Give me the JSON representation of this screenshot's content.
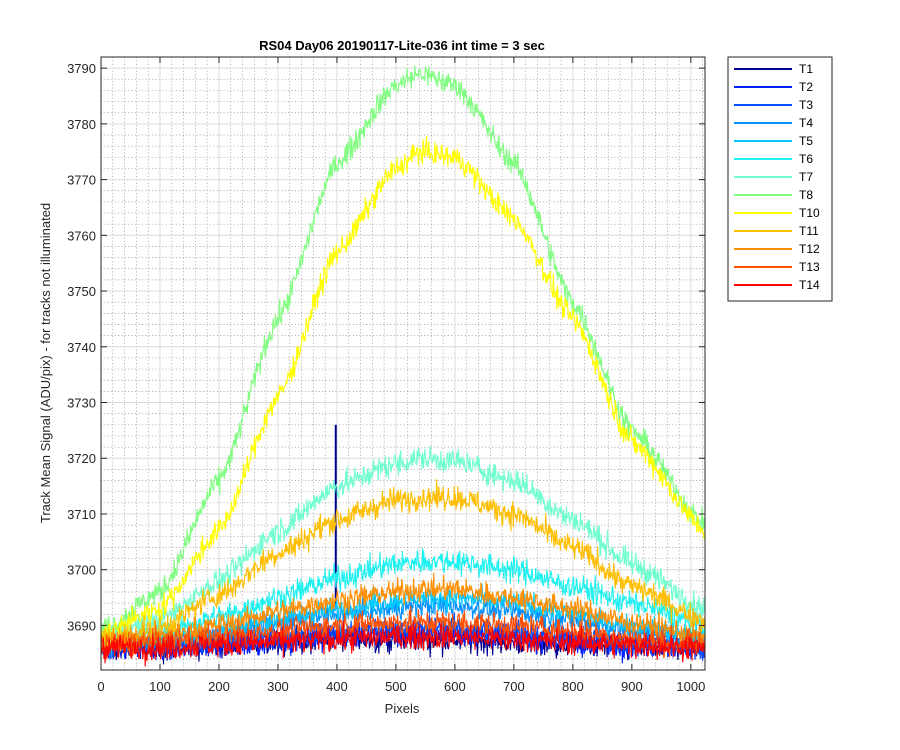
{
  "chart_data": {
    "type": "line",
    "title": "RS04 Day06 20190117-Lite-036 int time = 3 sec",
    "xlabel": "Pixels",
    "ylabel": "Track Mean Signal (ADU/pix) - for tracks not illuminated",
    "xlim": [
      0,
      1024
    ],
    "ylim": [
      3682,
      3792
    ],
    "xticks": [
      0,
      100,
      200,
      300,
      400,
      500,
      600,
      700,
      800,
      900,
      1000
    ],
    "yticks": [
      3690,
      3700,
      3710,
      3720,
      3730,
      3740,
      3750,
      3760,
      3770,
      3780,
      3790
    ],
    "grid": true,
    "minor_grid": true,
    "legend_position": "outside-top-right",
    "x": [
      0,
      100,
      200,
      300,
      400,
      500,
      540,
      600,
      700,
      800,
      900,
      1024
    ],
    "series": [
      {
        "name": "T1",
        "color": "#00008f",
        "values": [
          3686,
          3686,
          3686.5,
          3687,
          3687.5,
          3687.5,
          3687.5,
          3687.5,
          3687,
          3686.5,
          3686,
          3686
        ],
        "noise": 1.6,
        "spike": {
          "x": 398,
          "low": 3693,
          "high": 3726
        }
      },
      {
        "name": "T2",
        "color": "#0020ff",
        "values": [
          3686,
          3686,
          3686.5,
          3687,
          3688,
          3688.5,
          3688.5,
          3688.5,
          3688,
          3687,
          3686.5,
          3686
        ],
        "noise": 1.6
      },
      {
        "name": "T3",
        "color": "#0050ff",
        "values": [
          3686,
          3686.5,
          3687,
          3688,
          3689,
          3689.5,
          3689.5,
          3689.5,
          3689,
          3688,
          3687,
          3686
        ],
        "noise": 1.5
      },
      {
        "name": "T4",
        "color": "#0090ff",
        "values": [
          3686.5,
          3687,
          3688.5,
          3690.5,
          3692,
          3693,
          3693.5,
          3693.5,
          3692.5,
          3691,
          3689,
          3687.5
        ],
        "noise": 1.4
      },
      {
        "name": "T5",
        "color": "#00c8ff",
        "values": [
          3687,
          3687.5,
          3689,
          3691,
          3693,
          3694.5,
          3695,
          3695,
          3694,
          3692,
          3690,
          3688
        ],
        "noise": 1.4
      },
      {
        "name": "T6",
        "color": "#1ff0f0",
        "values": [
          3687,
          3688.5,
          3691.5,
          3695,
          3698.5,
          3701,
          3701.5,
          3701.5,
          3700,
          3697,
          3694,
          3690
        ],
        "noise": 1.6
      },
      {
        "name": "T7",
        "color": "#70ffd0",
        "values": [
          3688,
          3691,
          3698,
          3707,
          3715,
          3719,
          3720,
          3719.5,
          3716,
          3709,
          3701,
          3693
        ],
        "noise": 1.6
      },
      {
        "name": "T8",
        "color": "#80ff80",
        "values": [
          3689,
          3696,
          3716,
          3745,
          3773,
          3787,
          3789,
          3787,
          3773,
          3748,
          3725,
          3708
        ],
        "noise": 1.5
      },
      {
        "name": "T10",
        "color": "#ffff00",
        "values": [
          3688.5,
          3693,
          3707,
          3731,
          3757,
          3772,
          3775,
          3774,
          3763,
          3745,
          3723,
          3707
        ],
        "noise": 1.5
      },
      {
        "name": "T11",
        "color": "#ffbf00",
        "values": [
          3687.5,
          3689.5,
          3695.5,
          3703,
          3709,
          3712.5,
          3713,
          3713,
          3710,
          3704,
          3697,
          3691
        ],
        "noise": 1.6
      },
      {
        "name": "T12",
        "color": "#ff8f00",
        "values": [
          3687,
          3688,
          3690,
          3692.5,
          3694.5,
          3696,
          3696.5,
          3696.5,
          3695,
          3693,
          3690.5,
          3688
        ],
        "noise": 1.5
      },
      {
        "name": "T13",
        "color": "#ff5000",
        "values": [
          3686.5,
          3687,
          3688,
          3689,
          3690,
          3690.5,
          3690.5,
          3690.5,
          3690,
          3689,
          3687.5,
          3686.5
        ],
        "noise": 1.6
      },
      {
        "name": "T14",
        "color": "#ff0000",
        "values": [
          3686,
          3686,
          3686.5,
          3687,
          3687.5,
          3688,
          3688,
          3688,
          3687.5,
          3687,
          3686.5,
          3686
        ],
        "noise": 1.6
      }
    ]
  }
}
